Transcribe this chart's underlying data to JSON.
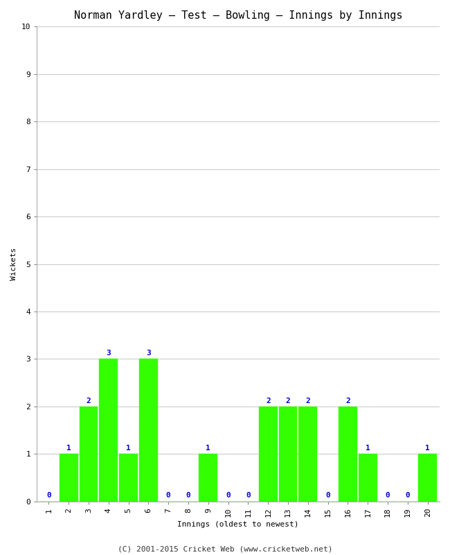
{
  "title": "Norman Yardley – Test – Bowling – Innings by Innings",
  "xlabel": "Innings (oldest to newest)",
  "ylabel": "Wickets",
  "footer": "(C) 2001-2015 Cricket Web (www.cricketweb.net)",
  "innings": [
    1,
    2,
    3,
    4,
    5,
    6,
    7,
    8,
    9,
    10,
    11,
    12,
    13,
    14,
    15,
    16,
    17,
    18,
    19,
    20
  ],
  "wickets": [
    0,
    1,
    2,
    3,
    1,
    3,
    0,
    0,
    1,
    0,
    0,
    2,
    2,
    2,
    0,
    2,
    1,
    0,
    0,
    1
  ],
  "bar_color": "#33ff00",
  "bar_edge_color": "#33ff00",
  "label_color": "#0000cc",
  "ylim": [
    0,
    10
  ],
  "yticks": [
    0,
    1,
    2,
    3,
    4,
    5,
    6,
    7,
    8,
    9,
    10
  ],
  "bg_color": "#ffffff",
  "grid_color": "#cccccc",
  "title_fontsize": 11,
  "axis_label_fontsize": 8,
  "tick_fontsize": 8,
  "bar_label_fontsize": 8,
  "footer_fontsize": 8
}
